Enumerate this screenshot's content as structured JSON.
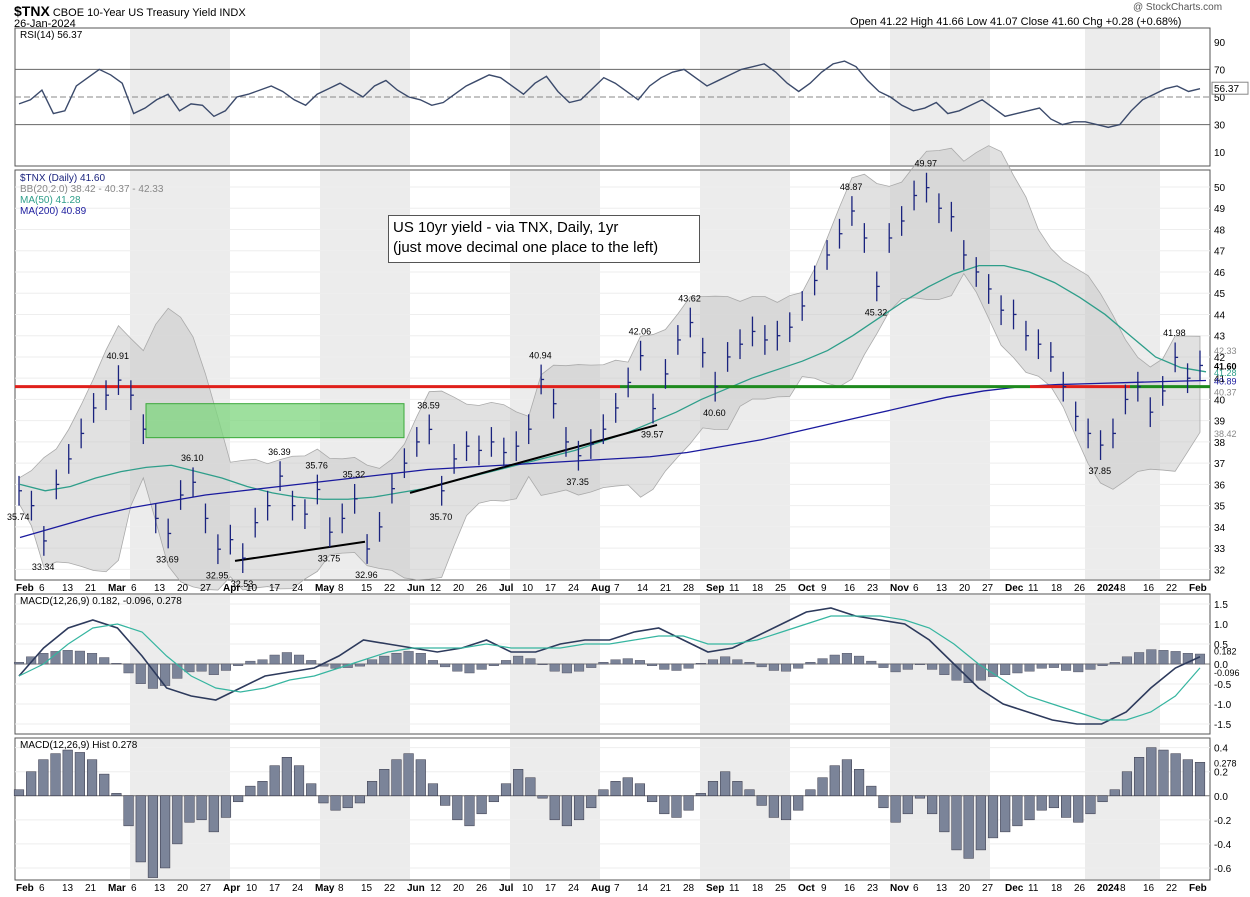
{
  "header": {
    "symbol": "$TNX",
    "name": "CBOE 10-Year US Treasury Yield",
    "exchange": "INDX",
    "date": "26-Jan-2024",
    "watermark": "@ StockCharts.com",
    "ohlc": "Open 41.22  High 41.66  Low 41.07  Close 41.60  Chg +0.28 (+0.68%)"
  },
  "annotation": {
    "line1": "US 10yr yield - via TNX, Daily, 1yr",
    "line2": "(just move decimal one place to the left)"
  },
  "legends": {
    "rsi": "RSI(14) 56.37",
    "price": "$TNX (Daily) 41.60",
    "bb": "BB(20,2.0) 38.42 - 40.37 - 42.33",
    "ma50": "MA(50) 41.28",
    "ma200": "MA(200) 40.89",
    "macd": "MACD(12,26,9) 0.182, -0.096, 0.278",
    "hist": "MACD(12,26,9) Hist 0.278"
  },
  "x_axis_labels": [
    "Feb",
    "6",
    "13",
    "21",
    "Mar",
    "6",
    "13",
    "20",
    "27",
    "Apr",
    "10",
    "17",
    "24",
    "May",
    "8",
    "15",
    "22",
    "Jun",
    "12",
    "20",
    "26",
    "Jul",
    "10",
    "17",
    "24",
    "Aug",
    "7",
    "14",
    "21",
    "28",
    "Sep",
    "11",
    "18",
    "25",
    "Oct",
    "9",
    "16",
    "23",
    "Nov",
    "6",
    "13",
    "20",
    "27",
    "Dec",
    "11",
    "18",
    "26",
    "2024",
    "8",
    "16",
    "22",
    "Feb"
  ],
  "colors": {
    "price": "#1a237e",
    "ma50": "#2e9e8a",
    "ma200": "#1a1a9e",
    "red_line": "#e0201b",
    "green_line": "#1e8a1e",
    "box": "#7ed67e",
    "macd": "#2d3a5c",
    "signal": "#36b5a0",
    "hist": "#7b8499",
    "rsi": "#3b4a6b"
  },
  "chart_data": [
    {
      "type": "line",
      "panel": "RSI",
      "title": "RSI(14) 56.37",
      "y_ticks": [
        10,
        30,
        50,
        70,
        90
      ],
      "ylim": [
        0,
        100
      ],
      "current": "56.37",
      "values": [
        45,
        48,
        55,
        38,
        40,
        58,
        64,
        70,
        66,
        60,
        38,
        42,
        48,
        52,
        40,
        45,
        44,
        36,
        40,
        50,
        52,
        55,
        58,
        54,
        48,
        44,
        52,
        56,
        60,
        55,
        50,
        58,
        62,
        55,
        50,
        48,
        44,
        46,
        52,
        58,
        62,
        66,
        64,
        58,
        52,
        60,
        65,
        54,
        46,
        48,
        56,
        64,
        60,
        54,
        48,
        58,
        64,
        68,
        70,
        64,
        58,
        62,
        66,
        70,
        72,
        74,
        68,
        60,
        54,
        60,
        68,
        74,
        76,
        72,
        62,
        54,
        50,
        44,
        40,
        42,
        46,
        38,
        40,
        44,
        48,
        42,
        36,
        38,
        40,
        42,
        34,
        30,
        32,
        32,
        30,
        28,
        30,
        40,
        48,
        52,
        56,
        58,
        54,
        56
      ]
    },
    {
      "type": "line",
      "panel": "Price",
      "title": "$TNX (Daily) 41.60",
      "ylim": [
        31.5,
        50.8
      ],
      "y_ticks": [
        32,
        33,
        34,
        35,
        36,
        37,
        38,
        39,
        40,
        41,
        42,
        43,
        44,
        45,
        46,
        47,
        48,
        49,
        50
      ],
      "series": [
        {
          "name": "$TNX",
          "values": [
            35.7,
            35.0,
            33.34,
            36.0,
            37.2,
            38.4,
            39.6,
            40.2,
            40.91,
            40.2,
            38.6,
            34.4,
            33.69,
            35.5,
            36.1,
            34.4,
            32.95,
            33.4,
            32.53,
            34.2,
            35.0,
            36.39,
            35.0,
            34.6,
            35.76,
            33.75,
            34.4,
            35.32,
            32.96,
            34.0,
            35.8,
            37.0,
            38.0,
            38.59,
            35.7,
            37.2,
            37.8,
            37.6,
            38.0,
            37.5,
            37.8,
            38.6,
            40.94,
            39.8,
            38.0,
            37.35,
            37.9,
            38.6,
            39.6,
            40.8,
            42.06,
            39.57,
            41.2,
            42.8,
            43.62,
            42.2,
            40.6,
            42.0,
            42.6,
            43.2,
            42.8,
            43.0,
            43.4,
            44.4,
            45.6,
            46.8,
            47.8,
            48.87,
            47.6,
            45.32,
            47.6,
            48.4,
            49.6,
            49.97,
            49.0,
            48.6,
            46.8,
            46.0,
            45.2,
            44.2,
            44.0,
            43.0,
            42.6,
            42.0,
            40.6,
            39.2,
            38.4,
            37.85,
            38.4,
            40.0,
            40.6,
            39.4,
            40.4,
            41.98,
            41.0,
            41.6
          ],
          "labels": [
            {
              "text": "35.74",
              "x": 0
            },
            {
              "text": "33.34",
              "x": 2
            },
            {
              "text": "40.91",
              "x": 8
            },
            {
              "text": "33.69",
              "x": 12
            },
            {
              "text": "36.10",
              "x": 14
            },
            {
              "text": "32.95",
              "x": 16
            },
            {
              "text": "32.53",
              "x": 18
            },
            {
              "text": "36.39",
              "x": 21
            },
            {
              "text": "35.76",
              "x": 24
            },
            {
              "text": "33.75",
              "x": 25
            },
            {
              "text": "35.32",
              "x": 27
            },
            {
              "text": "32.96",
              "x": 28
            },
            {
              "text": "38.59",
              "x": 33
            },
            {
              "text": "35.70",
              "x": 34
            },
            {
              "text": "40.94",
              "x": 42
            },
            {
              "text": "37.35",
              "x": 45
            },
            {
              "text": "42.06",
              "x": 50
            },
            {
              "text": "39.57",
              "x": 51
            },
            {
              "text": "43.62",
              "x": 54
            },
            {
              "text": "40.60",
              "x": 56
            },
            {
              "text": "48.87",
              "x": 67
            },
            {
              "text": "45.32",
              "x": 69
            },
            {
              "text": "49.97",
              "x": 73
            },
            {
              "text": "37.85",
              "x": 87
            },
            {
              "text": "41.98",
              "x": 93
            }
          ]
        },
        {
          "name": "MA(50)",
          "values": [
            36.0,
            35.7,
            35.9,
            36.3,
            36.6,
            36.8,
            36.9,
            36.6,
            36.3,
            35.9,
            35.6,
            35.4,
            35.3,
            35.3,
            35.4,
            35.6,
            35.8,
            36.1,
            36.4,
            36.7,
            37.0,
            37.3,
            37.6,
            38.0,
            38.4,
            38.9,
            39.4,
            40.0,
            40.5,
            41.0,
            41.4,
            41.8,
            42.3,
            43.0,
            43.8,
            44.6,
            45.3,
            45.9,
            46.3,
            46.3,
            46.0,
            45.5,
            44.8,
            44.0,
            43.0,
            42.0,
            41.5,
            41.3
          ]
        },
        {
          "name": "MA(200)",
          "values": [
            33.5,
            34.0,
            34.5,
            34.9,
            35.2,
            35.5,
            35.7,
            35.9,
            36.1,
            36.3,
            36.5,
            36.7,
            36.8,
            36.9,
            37.0,
            37.1,
            37.2,
            37.3,
            37.5,
            37.8,
            38.1,
            38.5,
            38.9,
            39.3,
            39.7,
            40.1,
            40.4,
            40.6,
            40.7,
            40.75,
            40.8,
            40.85,
            40.89
          ]
        }
      ],
      "right_labels": [
        "41.60",
        "41.28",
        "40.89",
        "40.37",
        "42.33",
        "38.42"
      ]
    },
    {
      "type": "line",
      "panel": "MACD",
      "title": "MACD(12,26,9) 0.182, -0.096, 0.278",
      "y_ticks": [
        1.5,
        1.0,
        0.5,
        0.0,
        -0.5,
        -1.0,
        -1.5
      ],
      "ylim": [
        -1.75,
        1.75
      ],
      "series": [
        {
          "name": "MACD",
          "values": [
            -0.3,
            0.4,
            0.9,
            1.1,
            0.9,
            0.2,
            -0.6,
            -0.8,
            -0.9,
            -0.6,
            -0.3,
            -0.2,
            -0.1,
            0.2,
            0.6,
            0.5,
            0.4,
            0.3,
            0.4,
            0.6,
            0.3,
            0.3,
            0.5,
            0.6,
            0.6,
            0.8,
            0.9,
            0.6,
            0.3,
            0.4,
            0.7,
            1.0,
            1.3,
            1.4,
            1.2,
            1.1,
            1.0,
            0.6,
            0.0,
            -0.6,
            -1.0,
            -1.2,
            -1.4,
            -1.5,
            -1.5,
            -1.2,
            -0.6,
            -0.1,
            0.182
          ]
        },
        {
          "name": "Signal",
          "values": [
            -0.3,
            0.0,
            0.5,
            0.9,
            1.0,
            0.8,
            0.2,
            -0.3,
            -0.6,
            -0.7,
            -0.6,
            -0.4,
            -0.3,
            -0.1,
            0.1,
            0.3,
            0.4,
            0.4,
            0.4,
            0.5,
            0.4,
            0.4,
            0.4,
            0.5,
            0.5,
            0.6,
            0.7,
            0.7,
            0.5,
            0.5,
            0.6,
            0.8,
            1.0,
            1.2,
            1.2,
            1.2,
            1.1,
            0.9,
            0.5,
            0.0,
            -0.4,
            -0.8,
            -1.0,
            -1.2,
            -1.4,
            -1.4,
            -1.2,
            -0.8,
            -0.096
          ]
        }
      ],
      "right_labels": [
        "0.182",
        "-0.096"
      ]
    },
    {
      "type": "bar",
      "panel": "MACD Histogram",
      "title": "MACD(12,26,9) Hist 0.278",
      "y_ticks": [
        0.4,
        0.2,
        0.0,
        -0.2,
        -0.4,
        -0.6
      ],
      "ylim": [
        -0.7,
        0.48
      ],
      "values": [
        0.05,
        0.2,
        0.3,
        0.35,
        0.38,
        0.36,
        0.3,
        0.18,
        0.02,
        -0.25,
        -0.55,
        -0.68,
        -0.6,
        -0.4,
        -0.22,
        -0.2,
        -0.3,
        -0.18,
        -0.05,
        0.08,
        0.12,
        0.25,
        0.32,
        0.25,
        0.1,
        -0.06,
        -0.12,
        -0.1,
        -0.06,
        0.12,
        0.22,
        0.3,
        0.35,
        0.3,
        0.1,
        -0.08,
        -0.2,
        -0.25,
        -0.15,
        -0.05,
        0.1,
        0.22,
        0.15,
        -0.02,
        -0.2,
        -0.25,
        -0.2,
        -0.1,
        0.05,
        0.12,
        0.15,
        0.1,
        -0.05,
        -0.15,
        -0.18,
        -0.12,
        0.02,
        0.12,
        0.2,
        0.12,
        0.05,
        -0.08,
        -0.18,
        -0.2,
        -0.12,
        0.05,
        0.15,
        0.25,
        0.3,
        0.22,
        0.08,
        -0.1,
        -0.22,
        -0.15,
        -0.02,
        -0.15,
        -0.3,
        -0.45,
        -0.52,
        -0.45,
        -0.35,
        -0.3,
        -0.25,
        -0.2,
        -0.12,
        -0.1,
        -0.18,
        -0.22,
        -0.15,
        -0.05,
        0.05,
        0.2,
        0.32,
        0.4,
        0.38,
        0.35,
        0.3,
        0.278
      ],
      "right_labels": [
        "0.278"
      ]
    }
  ]
}
